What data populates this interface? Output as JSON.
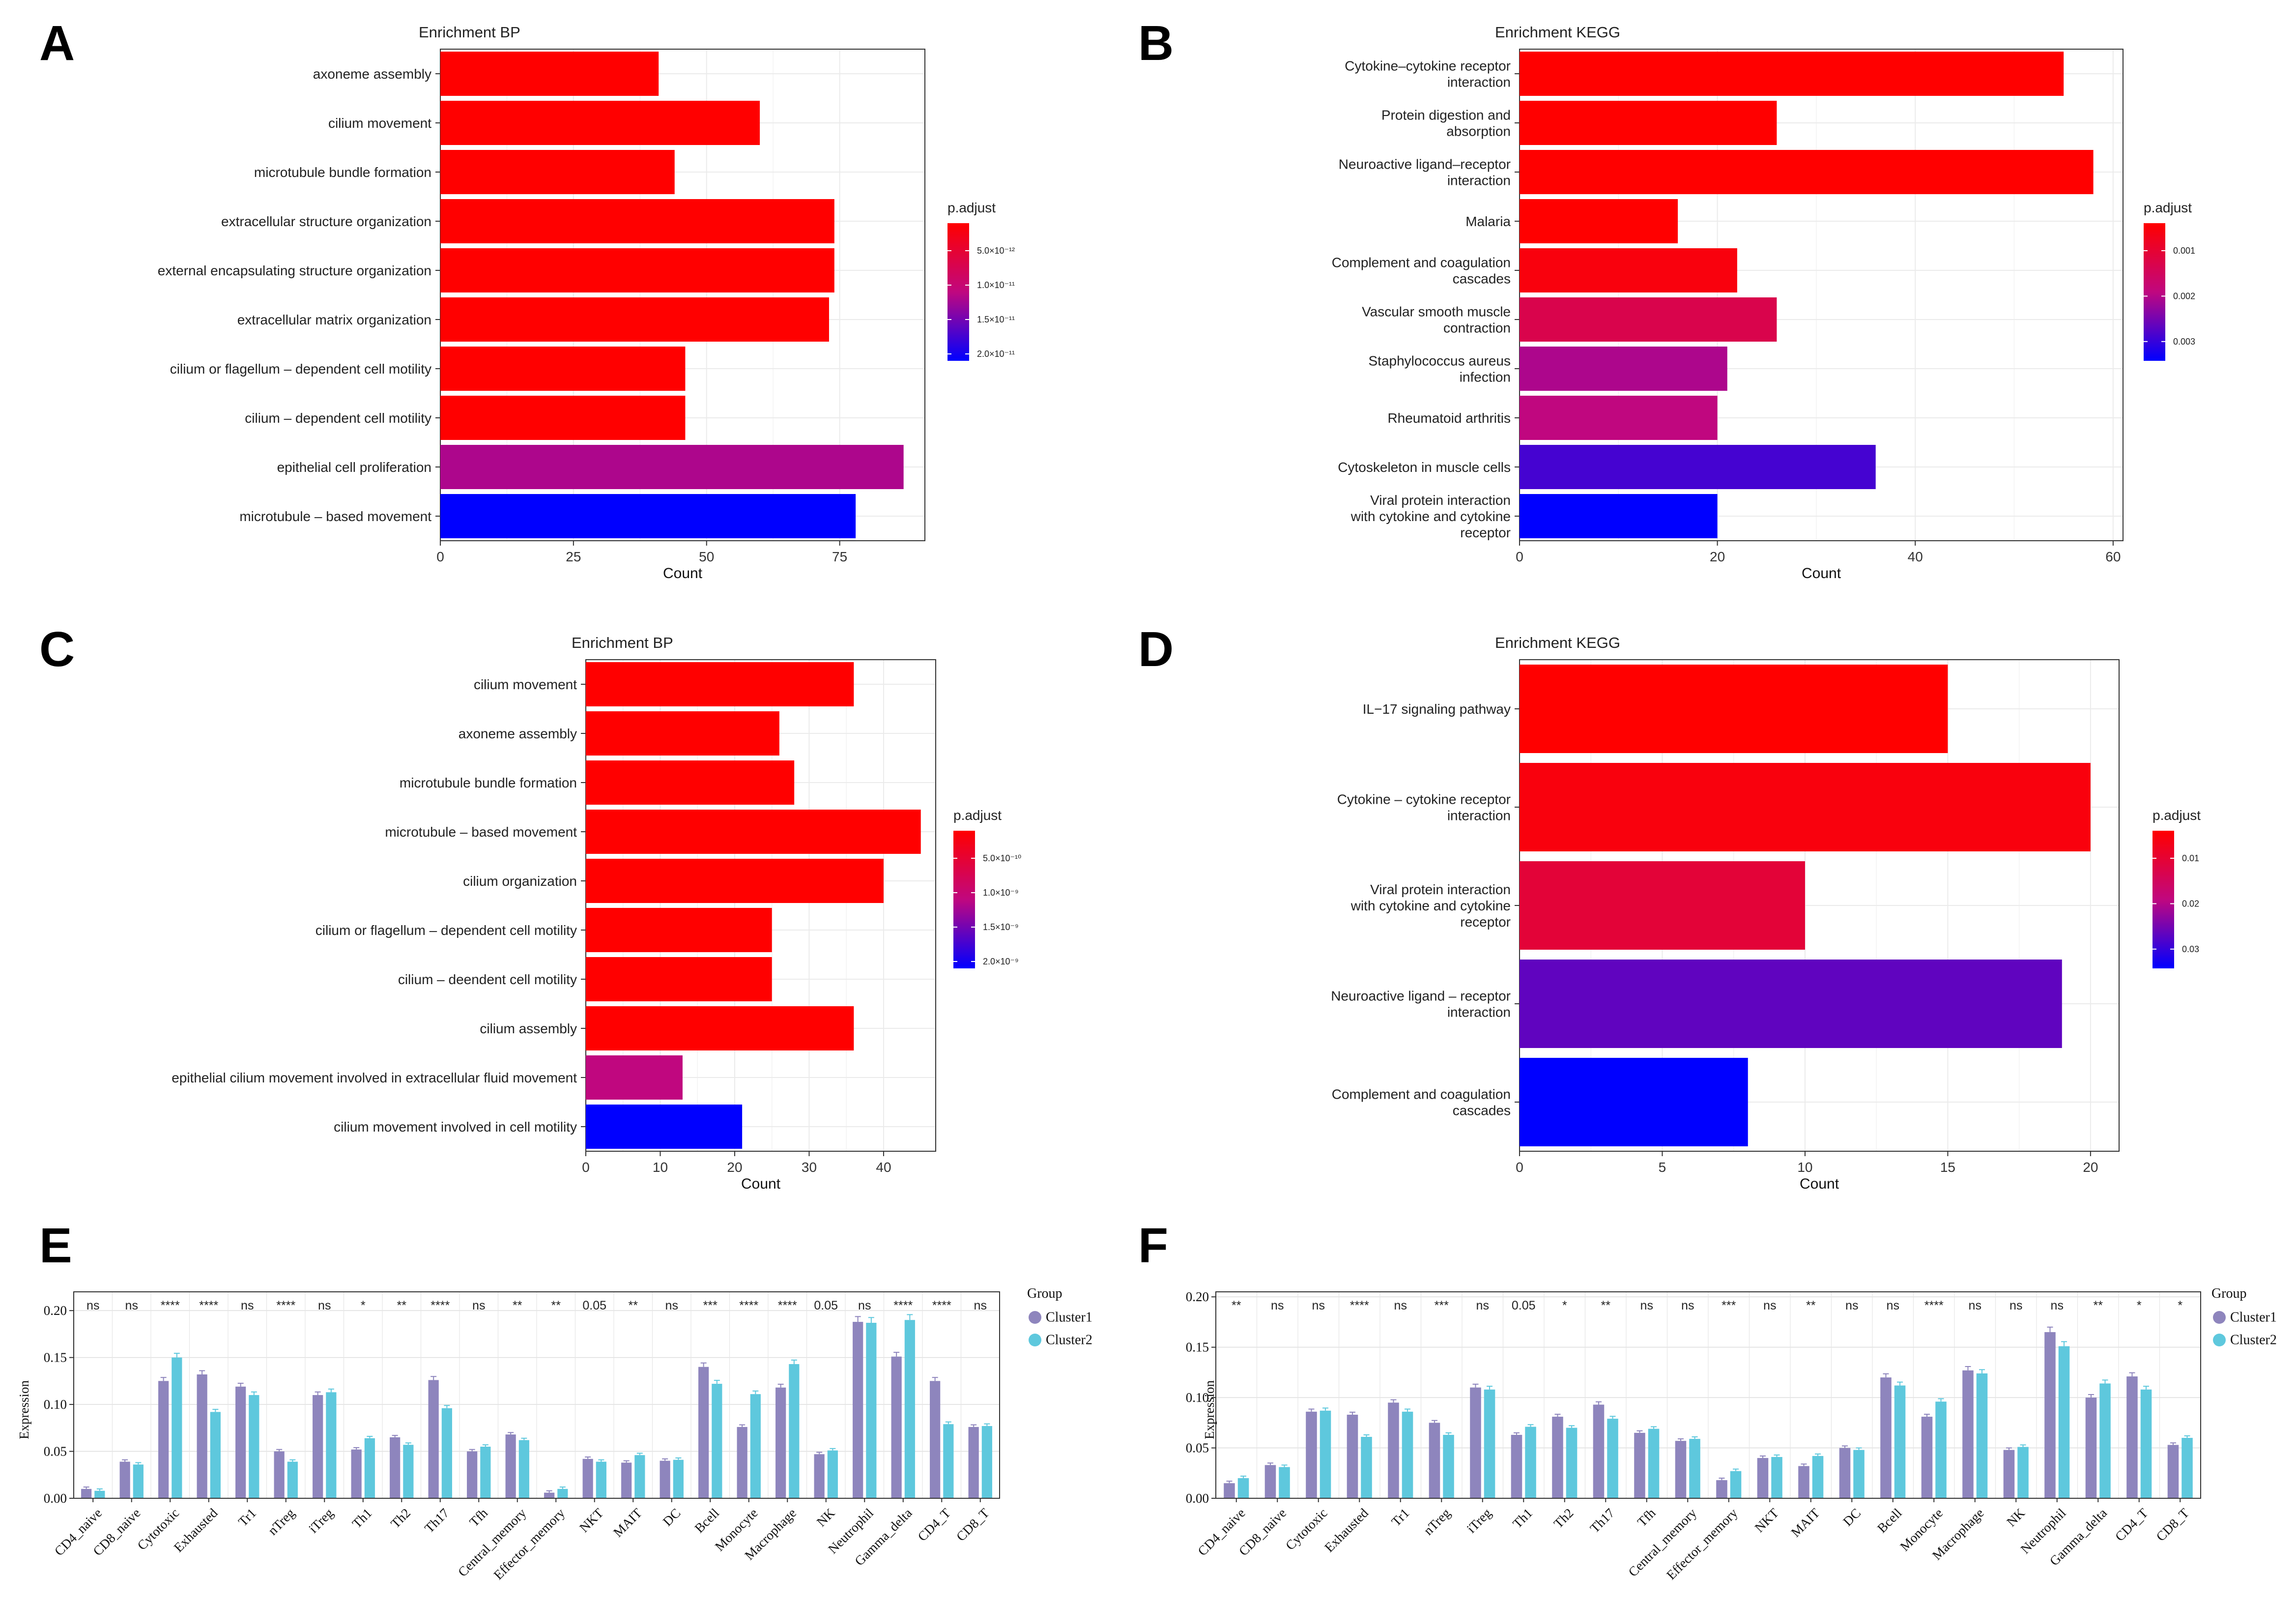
{
  "colors": {
    "padj_high": "#ff0000",
    "padj_mid": "#c0077f",
    "padj_low": "#0000ff",
    "cluster1": "#8e85bd",
    "cluster2": "#5ec8dd",
    "panel_bg": "#ffffff",
    "grid": "#ebebeb"
  },
  "chart_data": [
    {
      "id": "A",
      "type": "bar",
      "orientation": "horizontal",
      "title": "Enrichment BP",
      "xlabel": "Count",
      "categories": [
        "axoneme assembly",
        "cilium movement",
        "microtubule bundle formation",
        "extracellular structure organization",
        "external encapsulating structure organization",
        "extracellular matrix organization",
        "cilium or flagellum – dependent cell motility",
        "cilium – dependent cell motility",
        "epithelial cell proliferation",
        "microtubule – based movement"
      ],
      "values": [
        41,
        60,
        44,
        74,
        74,
        73,
        46,
        46,
        87,
        78
      ],
      "color_values": [
        0,
        0,
        0,
        0,
        0,
        0,
        0,
        0,
        0.55,
        1
      ],
      "xlim": [
        0,
        91
      ],
      "xticks": [
        "0",
        "25",
        "50",
        "75"
      ],
      "legend_title": "p.adjust",
      "legend_ticks": [
        "5.0×10⁻¹²",
        "1.0×10⁻¹¹",
        "1.5×10⁻¹¹",
        "2.0×10⁻¹¹"
      ]
    },
    {
      "id": "B",
      "type": "bar",
      "orientation": "horizontal",
      "title": "Enrichment KEGG",
      "xlabel": "Count",
      "categories": [
        "Cytokine–cytokine receptor\ninteraction",
        "Protein digestion and\nabsorption",
        "Neuroactive ligand–receptor\ninteraction",
        "Malaria",
        "Complement and coagulation\ncascades",
        "Vascular smooth muscle\ncontraction",
        "Staphylococcus aureus\ninfection",
        "Rheumatoid arthritis",
        "Cytoskeleton in muscle cells",
        "Viral protein interaction\nwith cytokine and cytokine\nreceptor"
      ],
      "values": [
        55,
        26,
        58,
        16,
        22,
        26,
        21,
        20,
        36,
        20
      ],
      "color_values": [
        0,
        0,
        0,
        0,
        0.05,
        0.3,
        0.55,
        0.5,
        0.82,
        1
      ],
      "xlim": [
        0,
        61
      ],
      "xticks": [
        "0",
        "20",
        "40",
        "60"
      ],
      "legend_title": "p.adjust",
      "legend_ticks": [
        "0.001",
        "0.002",
        "0.003"
      ]
    },
    {
      "id": "C",
      "type": "bar",
      "orientation": "horizontal",
      "title": "Enrichment BP",
      "xlabel": "Count",
      "categories": [
        "cilium movement",
        "axoneme assembly",
        "microtubule bundle formation",
        "microtubule – based movement",
        "cilium organization",
        "cilium or flagellum – dependent cell motility",
        "cilium – deendent cell motility",
        "cilium assembly",
        "epithelial cilium movement involved in extracellular fluid movement",
        "cilium movement involved in cell motility"
      ],
      "values": [
        36,
        26,
        28,
        45,
        40,
        25,
        25,
        36,
        13,
        21
      ],
      "color_values": [
        0,
        0,
        0,
        0,
        0,
        0,
        0,
        0,
        0.5,
        1
      ],
      "xlim": [
        0,
        47
      ],
      "xticks": [
        "0",
        "10",
        "20",
        "30",
        "40"
      ],
      "legend_title": "p.adjust",
      "legend_ticks": [
        "5.0×10⁻¹⁰",
        "1.0×10⁻⁹",
        "1.5×10⁻⁹",
        "2.0×10⁻⁹"
      ]
    },
    {
      "id": "D",
      "type": "bar",
      "orientation": "horizontal",
      "title": "Enrichment KEGG",
      "xlabel": "Count",
      "categories": [
        "IL−17 signaling pathway",
        "Cytokine – cytokine receptor\ninteraction",
        "Viral protein interaction\nwith cytokine and cytokine\nreceptor",
        "Neuroactive ligand – receptor\ninteraction",
        "Complement and coagulation\ncascades"
      ],
      "values": [
        15,
        20,
        10,
        19,
        8
      ],
      "color_values": [
        0,
        0.05,
        0.22,
        0.75,
        1
      ],
      "xlim": [
        0,
        21
      ],
      "xticks": [
        "0",
        "5",
        "10",
        "15",
        "20"
      ],
      "legend_title": "p.adjust",
      "legend_ticks": [
        "0.01",
        "0.02",
        "0.03"
      ]
    },
    {
      "id": "E",
      "type": "bar",
      "orientation": "vertical",
      "ylabel": "Expression",
      "ylim": [
        0,
        0.22
      ],
      "yticks": [
        "0.00",
        "0.05",
        "0.10",
        "0.15",
        "0.20"
      ],
      "legend_title": "Group",
      "categories": [
        "CD4_naive",
        "CD8_naive",
        "Cytotoxic",
        "Exhausted",
        "Tr1",
        "nTreg",
        "iTreg",
        "Th1",
        "Th2",
        "Th17",
        "Tfh",
        "Central_memory",
        "Effector_memory",
        "NKT",
        "MAIT",
        "DC",
        "Bcell",
        "Monocyte",
        "Macrophage",
        "NK",
        "Neutrophil",
        "Gamma_delta",
        "CD4_T",
        "CD8_T"
      ],
      "significance": [
        "ns",
        "ns",
        "****",
        "****",
        "ns",
        "****",
        "ns",
        "*",
        "**",
        "****",
        "ns",
        "**",
        "**",
        "0.05",
        "**",
        "ns",
        "***",
        "****",
        "****",
        "0.05",
        "ns",
        "****",
        "****",
        "ns"
      ],
      "series": [
        {
          "name": "Cluster1",
          "values": [
            0.01,
            0.039,
            0.125,
            0.132,
            0.119,
            0.05,
            0.11,
            0.052,
            0.065,
            0.126,
            0.05,
            0.068,
            0.006,
            0.042,
            0.038,
            0.04,
            0.14,
            0.076,
            0.118,
            0.047,
            0.188,
            0.151,
            0.125,
            0.076
          ]
        },
        {
          "name": "Cluster2",
          "values": [
            0.008,
            0.036,
            0.15,
            0.092,
            0.11,
            0.039,
            0.113,
            0.064,
            0.057,
            0.096,
            0.055,
            0.062,
            0.01,
            0.039,
            0.046,
            0.041,
            0.122,
            0.111,
            0.143,
            0.051,
            0.187,
            0.19,
            0.079,
            0.077
          ]
        }
      ]
    },
    {
      "id": "F",
      "type": "bar",
      "orientation": "vertical",
      "ylabel": "Expression",
      "ylim": [
        0,
        0.205
      ],
      "yticks": [
        "0.00",
        "0.05",
        "0.10",
        "0.15",
        "0.20"
      ],
      "legend_title": "Group",
      "categories": [
        "CD4_naive",
        "CD8_naive",
        "Cytotoxic",
        "Exhausted",
        "Tr1",
        "nTreg",
        "iTreg",
        "Th1",
        "Th2",
        "Th17",
        "Tfh",
        "Central_memory",
        "Effector_memory",
        "NKT",
        "MAIT",
        "DC",
        "Bcell",
        "Monocyte",
        "Macrophage",
        "NK",
        "Neutrophil",
        "Gamma_delta",
        "CD4_T",
        "CD8_T"
      ],
      "significance": [
        "**",
        "ns",
        "ns",
        "****",
        "ns",
        "***",
        "ns",
        "0.05",
        "*",
        "**",
        "ns",
        "ns",
        "***",
        "ns",
        "**",
        "ns",
        "ns",
        "****",
        "ns",
        "ns",
        "ns",
        "**",
        "*",
        "*"
      ],
      "series": [
        {
          "name": "Cluster1",
          "values": [
            0.015,
            0.033,
            0.086,
            0.083,
            0.095,
            0.075,
            0.11,
            0.063,
            0.081,
            0.093,
            0.065,
            0.057,
            0.018,
            0.04,
            0.032,
            0.05,
            0.12,
            0.081,
            0.127,
            0.048,
            0.165,
            0.1,
            0.121,
            0.053
          ]
        },
        {
          "name": "Cluster2",
          "values": [
            0.02,
            0.031,
            0.087,
            0.061,
            0.086,
            0.063,
            0.108,
            0.071,
            0.07,
            0.079,
            0.069,
            0.059,
            0.027,
            0.041,
            0.042,
            0.048,
            0.112,
            0.096,
            0.124,
            0.051,
            0.151,
            0.114,
            0.108,
            0.06
          ]
        }
      ]
    }
  ]
}
